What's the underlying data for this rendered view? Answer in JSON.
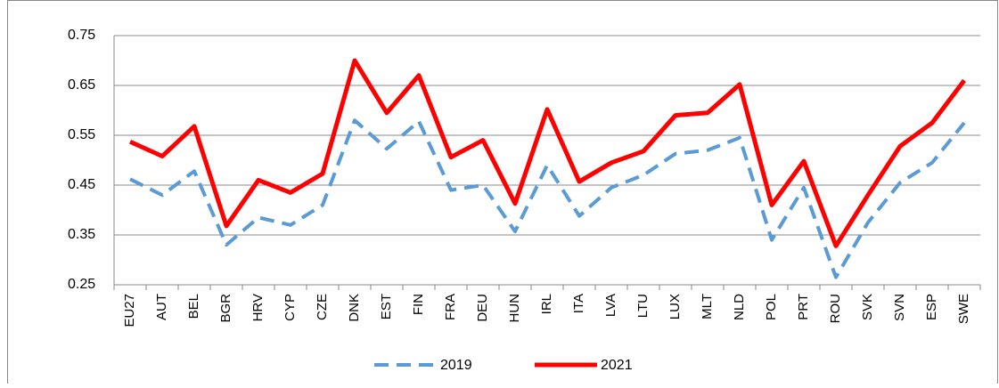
{
  "chart_data": {
    "type": "line",
    "categories": [
      "EU27",
      "AUT",
      "BEL",
      "BGR",
      "HRV",
      "CYP",
      "CZE",
      "DNK",
      "EST",
      "FIN",
      "FRA",
      "DEU",
      "HUN",
      "IRL",
      "ITA",
      "LVA",
      "LTU",
      "LUX",
      "MLT",
      "NLD",
      "POL",
      "PRT",
      "ROU",
      "SVK",
      "SVN",
      "ESP",
      "SWE"
    ],
    "series": [
      {
        "name": "2019",
        "color": "#5b9bd5",
        "dashed": true,
        "values": [
          0.462,
          0.43,
          0.478,
          0.33,
          0.385,
          0.37,
          0.41,
          0.58,
          0.523,
          0.578,
          0.44,
          0.45,
          0.357,
          0.49,
          0.388,
          0.445,
          0.47,
          0.513,
          0.52,
          0.545,
          0.34,
          0.445,
          0.265,
          0.375,
          0.455,
          0.495,
          0.575
        ]
      },
      {
        "name": "2021",
        "color": "#ff0000",
        "dashed": false,
        "values": [
          0.537,
          0.508,
          0.568,
          0.368,
          0.46,
          0.435,
          0.473,
          0.7,
          0.595,
          0.67,
          0.506,
          0.54,
          0.413,
          0.602,
          0.457,
          0.495,
          0.518,
          0.59,
          0.595,
          0.652,
          0.41,
          0.498,
          0.328,
          0.43,
          0.528,
          0.575,
          0.66
        ]
      }
    ],
    "ylim": [
      0.25,
      0.75
    ],
    "yticks": [
      0.25,
      0.35,
      0.45,
      0.55,
      0.65,
      0.75
    ],
    "grid": true,
    "legend": "bottom"
  }
}
